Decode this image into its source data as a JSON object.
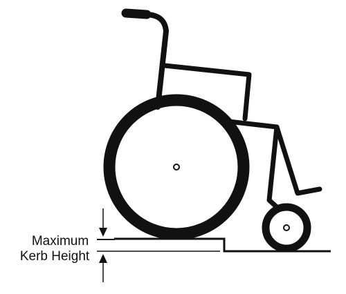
{
  "annotation": {
    "line1": "Maximum",
    "line2": "Kerb Height"
  },
  "colors": {
    "stroke": "#111111",
    "background": "#ffffff"
  },
  "icons": {
    "wheelchair": "wheelchair-icon",
    "arrow_down": "arrow-down-icon",
    "arrow_up": "arrow-up-icon"
  }
}
